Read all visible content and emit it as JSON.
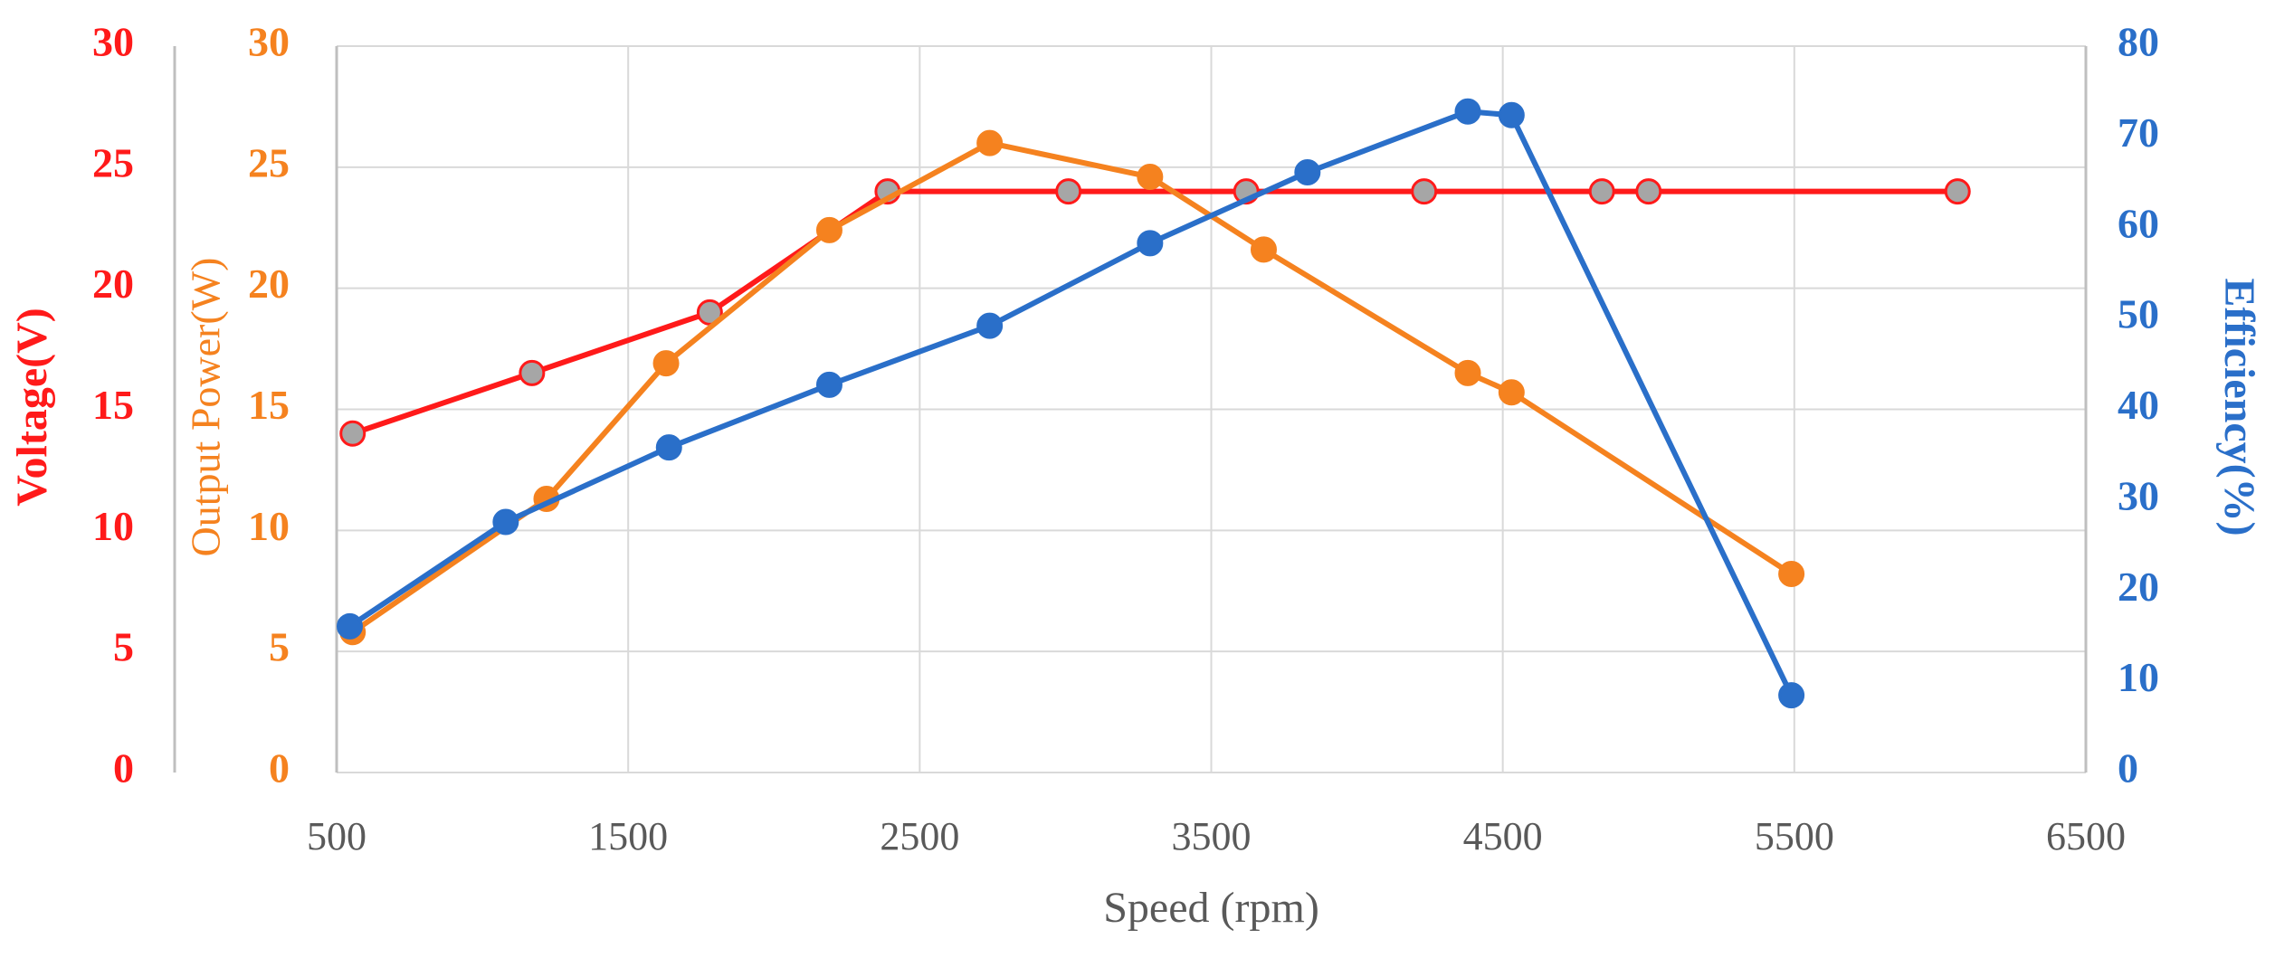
{
  "chart_data": {
    "type": "line",
    "xlabel": "Speed (rpm)",
    "xlim": [
      500,
      6500
    ],
    "xticks": [
      500,
      1500,
      2500,
      3500,
      4500,
      5500,
      6500
    ],
    "ylabel": "Voltage(V)",
    "ylim": [
      0,
      30
    ],
    "yticks": [
      0,
      5,
      10,
      15,
      20,
      25,
      30
    ],
    "y3label": "Output Power(W)",
    "y3lim": [
      0,
      30
    ],
    "y3ticks": [
      0,
      5,
      10,
      15,
      20,
      25,
      30
    ],
    "y2label": "Efficiency(%)",
    "y2lim": [
      0,
      80
    ],
    "y2ticks": [
      0,
      10,
      20,
      30,
      40,
      50,
      60,
      70,
      80
    ],
    "grid": true,
    "series": [
      {
        "name": "Voltage",
        "axis": "y",
        "color": "#ff1a1a",
        "marker_color": "#a6a6a6",
        "x": [
          555,
          1170,
          1780,
          2390,
          3010,
          3620,
          4230,
          4840,
          5000,
          6060
        ],
        "values": [
          14.0,
          16.5,
          19.0,
          24.0,
          24.0,
          24.0,
          24.0,
          24.0,
          24.0,
          24.0
        ]
      },
      {
        "name": "Output Power",
        "axis": "y3",
        "color": "#f5821f",
        "marker_color": "#f5821f",
        "x": [
          555,
          1220,
          1630,
          2190,
          2740,
          3290,
          3680,
          4380,
          4530,
          5490
        ],
        "values": [
          5.8,
          11.3,
          16.9,
          22.4,
          26.0,
          24.6,
          21.6,
          16.5,
          15.7,
          8.2
        ]
      },
      {
        "name": "Efficiency",
        "axis": "y2",
        "color": "#2a6fc9",
        "marker_color": "#2a6fc9",
        "x": [
          545,
          1080,
          1640,
          2190,
          2740,
          3290,
          3830,
          4380,
          4530,
          5490
        ],
        "values": [
          16.1,
          27.6,
          35.8,
          42.7,
          49.2,
          58.3,
          66.1,
          72.8,
          72.4,
          8.5
        ]
      }
    ]
  }
}
